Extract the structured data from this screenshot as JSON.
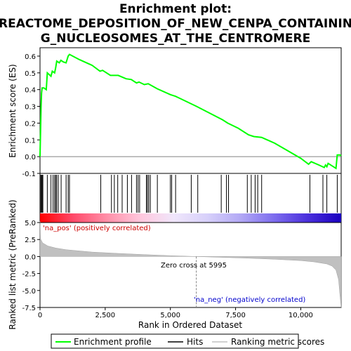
{
  "chart_data": {
    "type": "line",
    "title_line1": "Enrichment plot:",
    "title_line2": "REACTOME_DEPOSITION_OF_NEW_CENPA_CONTAININ",
    "title_line3": "G_NUCLEOSOMES_AT_THE_CENTROMERE",
    "es_panel": {
      "ylabel": "Enrichment score (ES)",
      "ylim": [
        -0.1,
        0.65
      ],
      "yticks": [
        -0.1,
        0.0,
        0.1,
        0.2,
        0.3,
        0.4,
        0.5,
        0.6
      ],
      "ytick_labels": [
        "-0.1",
        "0.0",
        "0.1",
        "0.2",
        "0.3",
        "0.4",
        "0.5",
        "0.6"
      ],
      "series_color": "#00ff00",
      "points": [
        [
          0,
          0
        ],
        [
          20,
          0.14
        ],
        [
          40,
          0.3
        ],
        [
          60,
          0.38
        ],
        [
          80,
          0.41
        ],
        [
          150,
          0.41
        ],
        [
          240,
          0.4
        ],
        [
          280,
          0.5
        ],
        [
          420,
          0.48
        ],
        [
          470,
          0.51
        ],
        [
          560,
          0.5
        ],
        [
          600,
          0.53
        ],
        [
          640,
          0.57
        ],
        [
          740,
          0.56
        ],
        [
          800,
          0.575
        ],
        [
          900,
          0.565
        ],
        [
          1000,
          0.56
        ],
        [
          1080,
          0.6
        ],
        [
          1130,
          0.61
        ],
        [
          1500,
          0.58
        ],
        [
          2000,
          0.545
        ],
        [
          2300,
          0.51
        ],
        [
          2400,
          0.515
        ],
        [
          2700,
          0.485
        ],
        [
          3000,
          0.485
        ],
        [
          3300,
          0.465
        ],
        [
          3500,
          0.46
        ],
        [
          3700,
          0.44
        ],
        [
          3800,
          0.445
        ],
        [
          4000,
          0.43
        ],
        [
          4150,
          0.435
        ],
        [
          4500,
          0.405
        ],
        [
          5000,
          0.37
        ],
        [
          5200,
          0.36
        ],
        [
          6000,
          0.3
        ],
        [
          7000,
          0.22
        ],
        [
          7200,
          0.2
        ],
        [
          7600,
          0.17
        ],
        [
          8000,
          0.13
        ],
        [
          8200,
          0.12
        ],
        [
          8500,
          0.115
        ],
        [
          9000,
          0.08
        ],
        [
          9500,
          0.035
        ],
        [
          10000,
          -0.01
        ],
        [
          10300,
          -0.045
        ],
        [
          10400,
          -0.03
        ],
        [
          10700,
          -0.05
        ],
        [
          10900,
          -0.065
        ],
        [
          10950,
          -0.05
        ],
        [
          11000,
          -0.06
        ],
        [
          11050,
          -0.04
        ],
        [
          11350,
          -0.07
        ],
        [
          11400,
          0.01
        ],
        [
          11500,
          0.01
        ],
        [
          11550,
          0.005
        ]
      ]
    },
    "hits_panel": {
      "hit_ranks": [
        30,
        60,
        80,
        110,
        280,
        420,
        500,
        560,
        600,
        640,
        700,
        810,
        1000,
        1080,
        1130,
        2330,
        2740,
        2850,
        2980,
        3150,
        3350,
        3510,
        3700,
        3760,
        3820,
        4080,
        4120,
        4170,
        4230,
        4500,
        5000,
        5050,
        5200,
        5800,
        6050,
        6950,
        7150,
        7230,
        7950,
        8100,
        8250,
        8350,
        8500,
        10350,
        10850,
        11000,
        11400
      ],
      "bar_stops": [
        "#ff0000",
        "#ff4a6a",
        "#ff8fa8",
        "#ffc7dd",
        "#f0e6fb",
        "#d7d0fa",
        "#b2a8f5",
        "#7d6cee",
        "#4a2fdc",
        "#1a00c0"
      ]
    },
    "metric_panel": {
      "ylabel": "Ranked list metric (PreRanked)",
      "ylim": [
        -7.5,
        5.0
      ],
      "yticks": [
        -7.5,
        -5.0,
        -2.5,
        0.0,
        2.5,
        5.0
      ],
      "ytick_labels": [
        "-7.5",
        "-5.0",
        "-2.5",
        "0.0",
        "2.5",
        "5.0"
      ],
      "profile": [
        [
          0,
          5.2
        ],
        [
          20,
          2.6
        ],
        [
          100,
          2.0
        ],
        [
          300,
          1.55
        ],
        [
          600,
          1.25
        ],
        [
          1000,
          1.0
        ],
        [
          2000,
          0.65
        ],
        [
          3000,
          0.45
        ],
        [
          4000,
          0.28
        ],
        [
          5000,
          0.12
        ],
        [
          5995,
          0
        ],
        [
          7000,
          -0.12
        ],
        [
          8000,
          -0.25
        ],
        [
          9000,
          -0.4
        ],
        [
          10000,
          -0.6
        ],
        [
          10500,
          -0.78
        ],
        [
          11000,
          -1.1
        ],
        [
          11200,
          -1.4
        ],
        [
          11350,
          -2.0
        ],
        [
          11450,
          -3.4
        ],
        [
          11500,
          -5.5
        ],
        [
          11550,
          -7.5
        ]
      ],
      "pos_label": "'na_pos' (positively correlated)",
      "neg_label": "'na_neg' (negatively correlated)",
      "zero_cross_label": "Zero cross at 5995",
      "zero_cross": 5995
    },
    "xaxis": {
      "xlabel": "Rank in Ordered Dataset",
      "xlim": [
        0,
        11550
      ],
      "xticks": [
        0,
        2500,
        5000,
        7500,
        10000
      ],
      "xtick_labels": [
        "0",
        "2,500",
        "5,000",
        "7,500",
        "10,000"
      ]
    },
    "legend": {
      "items": [
        {
          "label": "Enrichment profile",
          "color": "#00ff00"
        },
        {
          "label": "Hits",
          "color": "#000000"
        },
        {
          "label": "Ranking metric scores",
          "color": "#c0c0c0"
        }
      ]
    }
  }
}
